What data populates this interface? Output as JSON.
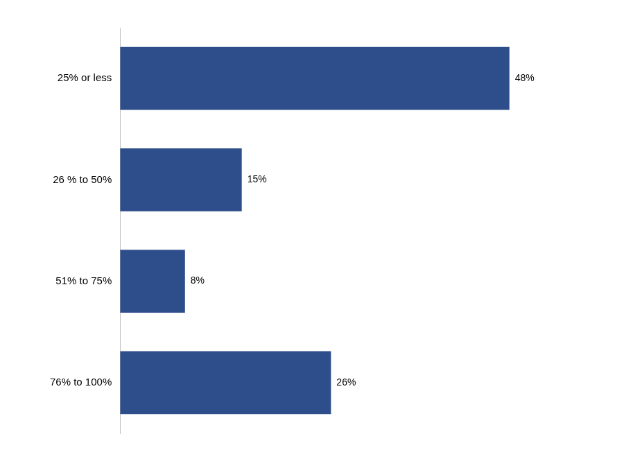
{
  "chart_data": {
    "type": "bar",
    "orientation": "horizontal",
    "categories": [
      "76% to 100%",
      "51% to 75%",
      "26 % to 50%",
      "25% or less"
    ],
    "values": [
      26,
      8,
      15,
      48
    ],
    "value_labels": [
      "26%",
      "8%",
      "15%",
      "48%"
    ],
    "color": "#2E4E8B",
    "xlim": [
      0,
      57
    ],
    "data_labels": true,
    "tick_labels": "y",
    "grid": false
  }
}
